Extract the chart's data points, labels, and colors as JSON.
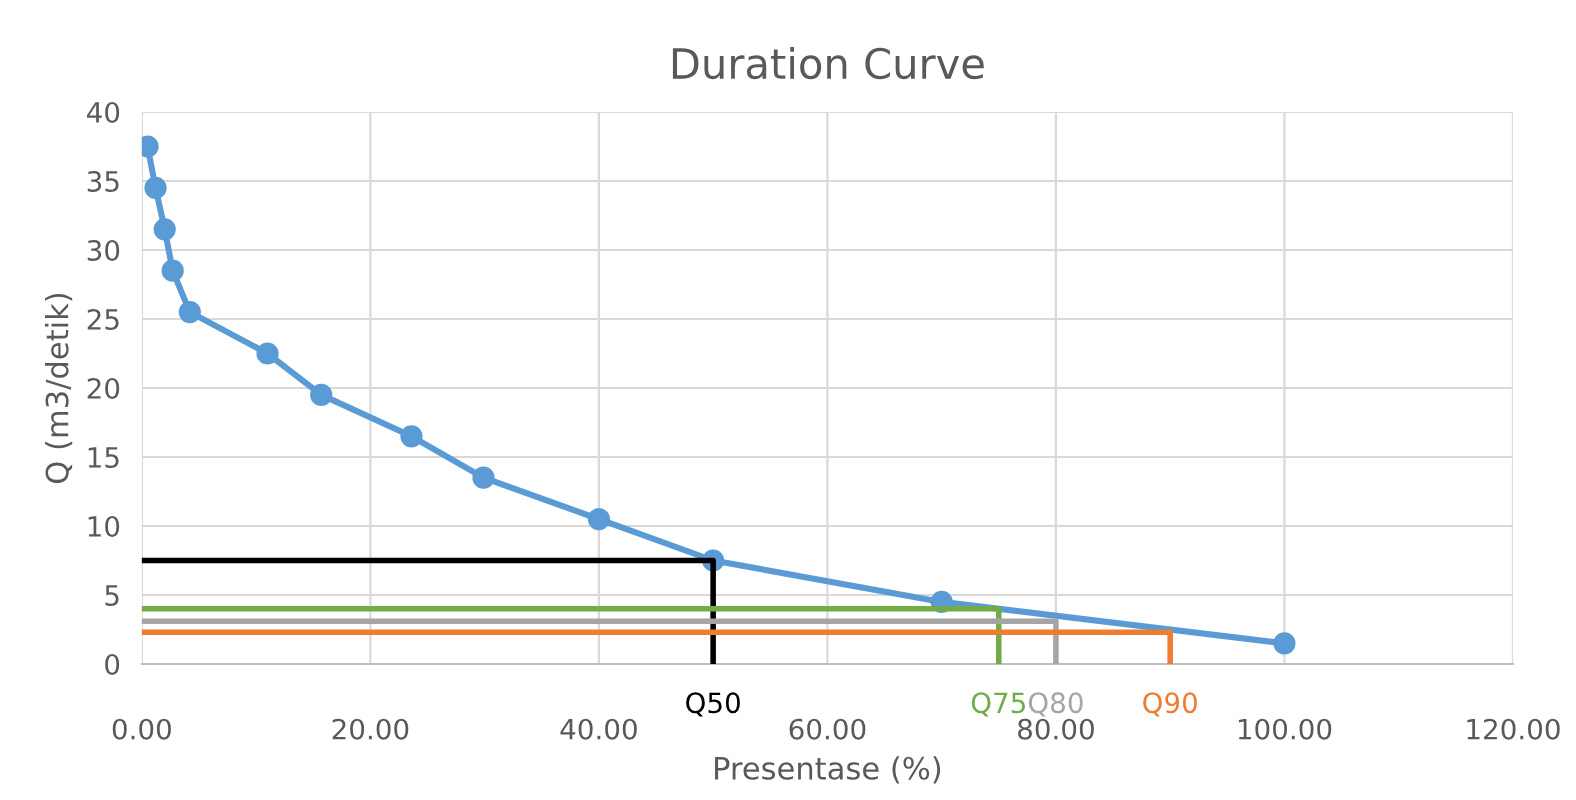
{
  "chart_data": {
    "type": "line",
    "title": "Duration Curve",
    "xlabel": "Presentase (%)",
    "ylabel": "Q (m3/detik)",
    "xlim": [
      0,
      120
    ],
    "xticks": [
      {
        "value": 0,
        "label": "0.00"
      },
      {
        "value": 20,
        "label": "20.00"
      },
      {
        "value": 40,
        "label": "40.00"
      },
      {
        "value": 60,
        "label": "60.00"
      },
      {
        "value": 80,
        "label": "80.00"
      },
      {
        "value": 100,
        "label": "100.00"
      },
      {
        "value": 120,
        "label": "120.00"
      }
    ],
    "ylim": [
      0,
      40
    ],
    "yticks": [
      0,
      5,
      10,
      15,
      20,
      25,
      30,
      35,
      40
    ],
    "grid": true,
    "legend": false,
    "series": [
      {
        "color": "#5b9bd5",
        "marker": "circle",
        "x": [
          0.5,
          1.2,
          2,
          2.7,
          4.2,
          11,
          15.7,
          23.6,
          29.9,
          40,
          50,
          70,
          100
        ],
        "values": [
          37.5,
          34.5,
          31.5,
          28.5,
          25.5,
          22.5,
          19.5,
          16.5,
          13.5,
          10.5,
          7.5,
          4.5,
          1.5
        ]
      },
      {
        "name": "Q50",
        "color": "#000000",
        "marker": "none",
        "x": [
          0,
          50,
          50
        ],
        "values": [
          7.5,
          7.5,
          0
        ]
      },
      {
        "name": "Q75",
        "color": "#70ad47",
        "marker": "none",
        "x": [
          0,
          75,
          75
        ],
        "values": [
          4,
          4,
          0
        ]
      },
      {
        "name": "Q80",
        "color": "#a5a5a5",
        "marker": "none",
        "x": [
          0,
          80,
          80
        ],
        "values": [
          3.1,
          3.1,
          0
        ]
      },
      {
        "name": "Q90",
        "color": "#ed7d31",
        "marker": "none",
        "x": [
          0,
          90,
          90
        ],
        "values": [
          2.3,
          2.3,
          0
        ]
      }
    ]
  }
}
